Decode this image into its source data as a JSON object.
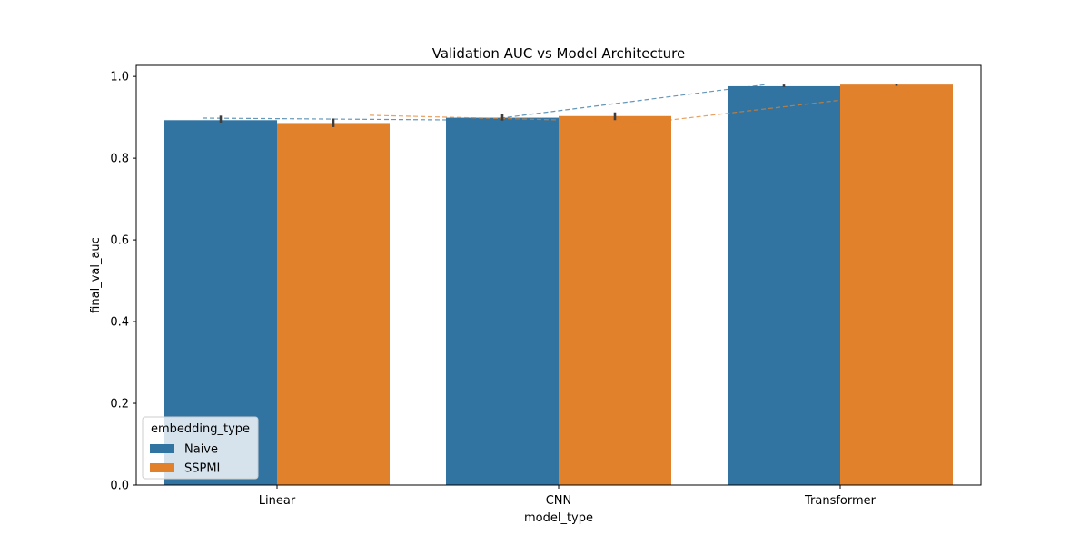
{
  "chart_data": {
    "type": "bar",
    "title": "Validation AUC vs Model Architecture",
    "xlabel": "model_type",
    "ylabel": "final_val_auc",
    "categories": [
      "Linear",
      "CNN",
      "Transformer"
    ],
    "ylim": [
      0,
      1.027
    ],
    "yticks": [
      0.0,
      0.2,
      0.4,
      0.6,
      0.8,
      1.0
    ],
    "ytick_labels": [
      "0.0",
      "0.2",
      "0.4",
      "0.6",
      "0.8",
      "1.0"
    ],
    "series": [
      {
        "name": "Naive",
        "color": "#3274a1",
        "values": [
          0.893,
          0.899,
          0.976
        ],
        "err_low": [
          0.887,
          0.892,
          0.974
        ],
        "err_high": [
          0.904,
          0.908,
          0.98
        ],
        "trend": [
          0.898,
          0.893,
          0.98
        ]
      },
      {
        "name": "SSPMI",
        "color": "#e1812c",
        "values": [
          0.886,
          0.903,
          0.98
        ],
        "err_low": [
          0.876,
          0.893,
          0.977
        ],
        "err_high": [
          0.897,
          0.912,
          0.982
        ],
        "trend": [
          0.905,
          0.888,
          0.968
        ]
      }
    ],
    "legend": {
      "title": "embedding_type",
      "placement": "lower-left",
      "entries": [
        "Naive",
        "SSPMI"
      ]
    },
    "grid": false
  }
}
